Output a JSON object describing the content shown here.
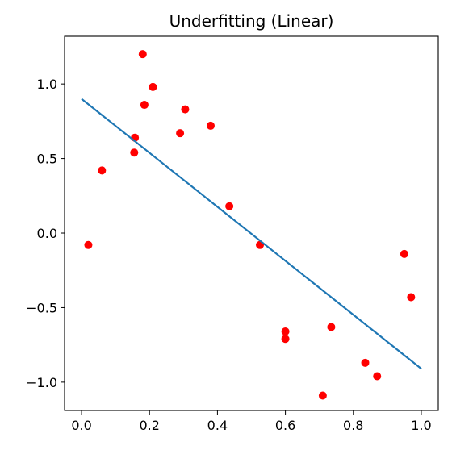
{
  "chart_data": {
    "type": "scatter",
    "title": "Underfitting (Linear)",
    "xlim": [
      -0.05,
      1.05
    ],
    "ylim": [
      -1.19,
      1.32
    ],
    "xticks": [
      0.0,
      0.2,
      0.4,
      0.6,
      0.8,
      1.0
    ],
    "xtick_labels": [
      "0.0",
      "0.2",
      "0.4",
      "0.6",
      "0.8",
      "1.0"
    ],
    "yticks": [
      -1.0,
      -0.5,
      0.0,
      0.5,
      1.0
    ],
    "ytick_labels": [
      "−1.0",
      "−0.5",
      "0.0",
      "0.5",
      "1.0"
    ],
    "grid": false,
    "series": [
      {
        "kind": "scatter",
        "color": "#ff0000",
        "points": [
          {
            "x": 0.02,
            "y": -0.08
          },
          {
            "x": 0.06,
            "y": 0.42
          },
          {
            "x": 0.155,
            "y": 0.54
          },
          {
            "x": 0.157,
            "y": 0.64
          },
          {
            "x": 0.18,
            "y": 1.2
          },
          {
            "x": 0.185,
            "y": 0.86
          },
          {
            "x": 0.21,
            "y": 0.98
          },
          {
            "x": 0.29,
            "y": 0.67
          },
          {
            "x": 0.305,
            "y": 0.83
          },
          {
            "x": 0.38,
            "y": 0.72
          },
          {
            "x": 0.435,
            "y": 0.18
          },
          {
            "x": 0.525,
            "y": -0.08
          },
          {
            "x": 0.6,
            "y": -0.66
          },
          {
            "x": 0.6,
            "y": -0.71
          },
          {
            "x": 0.71,
            "y": -1.09
          },
          {
            "x": 0.735,
            "y": -0.63
          },
          {
            "x": 0.835,
            "y": -0.87
          },
          {
            "x": 0.87,
            "y": -0.96
          },
          {
            "x": 0.95,
            "y": -0.14
          },
          {
            "x": 0.97,
            "y": -0.43
          }
        ]
      },
      {
        "kind": "line",
        "color": "#1f77b4",
        "points": [
          {
            "x": 0.0,
            "y": 0.9
          },
          {
            "x": 1.0,
            "y": -0.91
          }
        ]
      }
    ]
  }
}
